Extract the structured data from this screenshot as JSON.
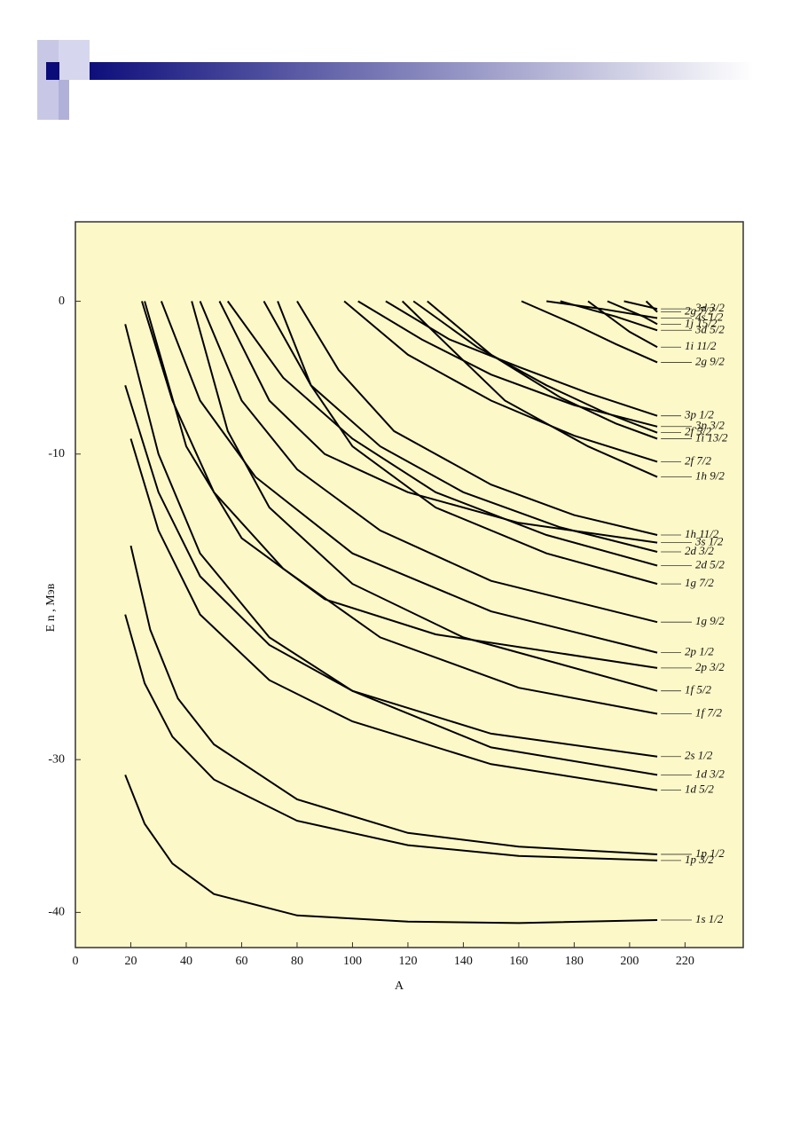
{
  "chart_data": {
    "type": "line",
    "xlabel": "A",
    "ylabel": "E n , Мэв",
    "xlim": [
      0,
      241
    ],
    "ylim": [
      -42.3,
      5.2
    ],
    "xticks": [
      0,
      20,
      40,
      60,
      80,
      100,
      120,
      140,
      160,
      180,
      200,
      220
    ],
    "yticks": [
      0,
      -10,
      -30,
      -40
    ],
    "background": "#fdf8c8",
    "series": [
      {
        "name": "1s 1/2",
        "color": "#000000",
        "x": [
          18,
          25,
          35,
          50,
          80,
          120,
          160,
          210
        ],
        "values": [
          -31,
          -34.2,
          -36.8,
          -38.8,
          -40.2,
          -40.6,
          -40.7,
          -40.5
        ]
      },
      {
        "name": "1p 3/2",
        "color": "#000000",
        "x": [
          18,
          25,
          35,
          50,
          80,
          120,
          160,
          210
        ],
        "values": [
          -20.5,
          -25,
          -28.5,
          -31.3,
          -34,
          -35.6,
          -36.3,
          -36.6
        ]
      },
      {
        "name": "1p 1/2",
        "color": "#000000",
        "x": [
          20,
          27,
          37,
          50,
          80,
          120,
          160,
          210
        ],
        "values": [
          -16,
          -21.5,
          -26,
          -29,
          -32.6,
          -34.8,
          -35.7,
          -36.2
        ]
      },
      {
        "name": "1d 5/2",
        "color": "#000000",
        "x": [
          20,
          30,
          45,
          70,
          100,
          150,
          210
        ],
        "values": [
          -9,
          -15,
          -20.5,
          -24.8,
          -27.5,
          -30.3,
          -32
        ]
      },
      {
        "name": "1d 3/2",
        "color": "#000000",
        "x": [
          18,
          30,
          45,
          70,
          100,
          150,
          210
        ],
        "values": [
          -1.5,
          -10,
          -16.5,
          -22,
          -25.5,
          -29.2,
          -31
        ]
      },
      {
        "name": "2s 1/2",
        "color": "#000000",
        "x": [
          18,
          30,
          45,
          70,
          100,
          150,
          210
        ],
        "values": [
          -5.5,
          -12.5,
          -18,
          -22.5,
          -25.5,
          -28.3,
          -29.8
        ]
      },
      {
        "name": "1f 7/2",
        "color": "#000000",
        "x": [
          24,
          35,
          50,
          75,
          110,
          160,
          210
        ],
        "values": [
          0,
          -6.5,
          -12.5,
          -17.5,
          -22,
          -25.3,
          -27
        ]
      },
      {
        "name": "1f 5/2",
        "color": "#000000",
        "x": [
          42,
          55,
          70,
          100,
          140,
          210
        ],
        "values": [
          0,
          -8.5,
          -13.5,
          -18.5,
          -22,
          -25.5
        ]
      },
      {
        "name": "2p 3/2",
        "color": "#000000",
        "x": [
          25,
          40,
          60,
          90,
          130,
          210
        ],
        "values": [
          0,
          -9.5,
          -15.5,
          -19.5,
          -21.8,
          -24
        ]
      },
      {
        "name": "2p 1/2",
        "color": "#000000",
        "x": [
          31,
          45,
          65,
          100,
          150,
          210
        ],
        "values": [
          0,
          -6.5,
          -11.5,
          -16.5,
          -20.3,
          -23
        ]
      },
      {
        "name": "1g 9/2",
        "color": "#000000",
        "x": [
          45,
          60,
          80,
          110,
          150,
          210
        ],
        "values": [
          0,
          -6.5,
          -11,
          -15,
          -18.3,
          -21
        ]
      },
      {
        "name": "1g 7/2",
        "color": "#000000",
        "x": [
          73,
          85,
          100,
          130,
          170,
          210
        ],
        "values": [
          0,
          -5.5,
          -9.5,
          -13.5,
          -16.5,
          -18.5
        ]
      },
      {
        "name": "2d 5/2",
        "color": "#000000",
        "x": [
          55,
          75,
          100,
          130,
          170,
          210
        ],
        "values": [
          0,
          -5,
          -9,
          -12.5,
          -15.3,
          -17.3
        ]
      },
      {
        "name": "2d 3/2",
        "color": "#000000",
        "x": [
          68,
          85,
          110,
          140,
          175,
          210
        ],
        "values": [
          0,
          -5.5,
          -9.5,
          -12.5,
          -14.8,
          -16.4
        ]
      },
      {
        "name": "3s 1/2",
        "color": "#000000",
        "x": [
          52,
          70,
          90,
          120,
          160,
          210
        ],
        "values": [
          0,
          -6.5,
          -10,
          -12.5,
          -14.5,
          -15.8
        ]
      },
      {
        "name": "1h 11/2",
        "color": "#000000",
        "x": [
          80,
          95,
          115,
          150,
          180,
          210
        ],
        "values": [
          0,
          -4.5,
          -8.5,
          -12,
          -14,
          -15.3
        ]
      },
      {
        "name": "1h 9/2",
        "color": "#000000",
        "x": [
          118,
          135,
          155,
          185,
          210
        ],
        "values": [
          0,
          -3,
          -6.5,
          -9.5,
          -11.5
        ]
      },
      {
        "name": "2f 7/2",
        "color": "#000000",
        "x": [
          97,
          120,
          150,
          180,
          210
        ],
        "values": [
          0,
          -3.5,
          -6.5,
          -8.8,
          -10.5
        ]
      },
      {
        "name": "1i 13/2",
        "color": "#000000",
        "x": [
          127,
          150,
          175,
          195,
          210
        ],
        "values": [
          0,
          -3.5,
          -6.3,
          -8,
          -9
        ]
      },
      {
        "name": "2f 5/2",
        "color": "#000000",
        "x": [
          122,
          145,
          170,
          190,
          210
        ],
        "values": [
          0,
          -3,
          -5.5,
          -7.2,
          -8.6
        ]
      },
      {
        "name": "3p 3/2",
        "color": "#000000",
        "x": [
          102,
          125,
          150,
          180,
          210
        ],
        "values": [
          0,
          -2.5,
          -4.8,
          -6.8,
          -8.2
        ]
      },
      {
        "name": "3p 1/2",
        "color": "#000000",
        "x": [
          112,
          135,
          160,
          185,
          210
        ],
        "values": [
          0,
          -2.5,
          -4.3,
          -6,
          -7.5
        ]
      },
      {
        "name": "2g 9/2",
        "color": "#000000",
        "x": [
          161,
          180,
          195,
          210
        ],
        "values": [
          0,
          -1.5,
          -2.8,
          -4
        ]
      },
      {
        "name": "1i 11/2",
        "color": "#000000",
        "x": [
          185,
          200,
          210
        ],
        "values": [
          0,
          -2,
          -3
        ]
      },
      {
        "name": "3d 5/2",
        "color": "#000000",
        "x": [
          175,
          195,
          210
        ],
        "values": [
          0,
          -1,
          -1.9
        ]
      },
      {
        "name": "1j 15/2",
        "color": "#000000",
        "x": [
          192,
          205,
          210
        ],
        "values": [
          0,
          -1,
          -1.5
        ]
      },
      {
        "name": "4s 1/2",
        "color": "#000000",
        "x": [
          170,
          190,
          210
        ],
        "values": [
          0,
          -0.5,
          -1.1
        ]
      },
      {
        "name": "2g 7/2",
        "color": "#000000",
        "x": [
          206,
          210
        ],
        "values": [
          0,
          -0.7
        ]
      },
      {
        "name": "3d 3/2",
        "color": "#000000",
        "x": [
          198,
          210
        ],
        "values": [
          0,
          -0.5
        ]
      }
    ]
  }
}
